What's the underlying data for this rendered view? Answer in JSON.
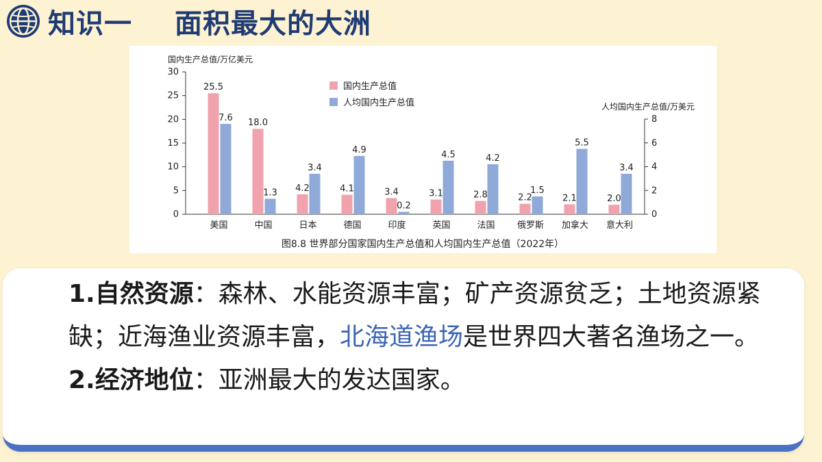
{
  "header": {
    "section": "知识一",
    "title": "面积最大的大洲"
  },
  "chart_data": {
    "type": "bar",
    "caption": "图8.8 世界部分国家国内生产总值和人均国内生产总值（2022年）",
    "left_axis_label": "国内生产总值/万亿美元",
    "right_axis_label": "人均国内生产总值/万美元",
    "categories": [
      "美国",
      "中国",
      "日本",
      "德国",
      "印度",
      "英国",
      "法国",
      "俄罗斯",
      "加拿大",
      "意大利"
    ],
    "series": [
      {
        "name": "国内生产总值",
        "axis": "left",
        "color": "#f0a3ad",
        "values": [
          25.5,
          18.0,
          4.2,
          4.1,
          3.4,
          3.1,
          2.8,
          2.2,
          2.1,
          2.0
        ],
        "labels": [
          "25.5",
          "18.0",
          "4.2",
          "4.1",
          "3.4",
          "3.1",
          "2.8",
          "2.2",
          "2.1",
          "2.0"
        ]
      },
      {
        "name": "人均国内生产总值",
        "axis": "right",
        "color": "#8fa9d9",
        "values": [
          7.6,
          1.3,
          3.4,
          4.9,
          0.2,
          4.5,
          4.2,
          1.5,
          5.5,
          3.4
        ],
        "labels": [
          "7.6",
          "1.3",
          "3.4",
          "4.9",
          "0.2",
          "4.5",
          "4.2",
          "1.5",
          "5.5",
          "3.4"
        ]
      }
    ],
    "left_ylim": [
      0,
      30
    ],
    "left_ticks": [
      "0",
      "5",
      "10",
      "15",
      "20",
      "25",
      "30"
    ],
    "right_ylim": [
      0,
      8
    ],
    "right_ticks": [
      "0",
      "2",
      "4",
      "6",
      "8"
    ],
    "legend_position": "top-center"
  },
  "content": {
    "p1_num": "1.",
    "p1_kw": "自然资源",
    "p1_colon": "：",
    "p1_text_a": "森林、水能资源丰富；矿产资源贫乏；土地资源紧缺；近海渔业资源丰富，",
    "p1_highlight": "北海道渔场",
    "p1_text_b": "是世界四大著名渔场之一。",
    "p2_num": "2.",
    "p2_kw": "经济地位",
    "p2_colon": "：",
    "p2_text": "亚洲最大的发达国家。"
  }
}
